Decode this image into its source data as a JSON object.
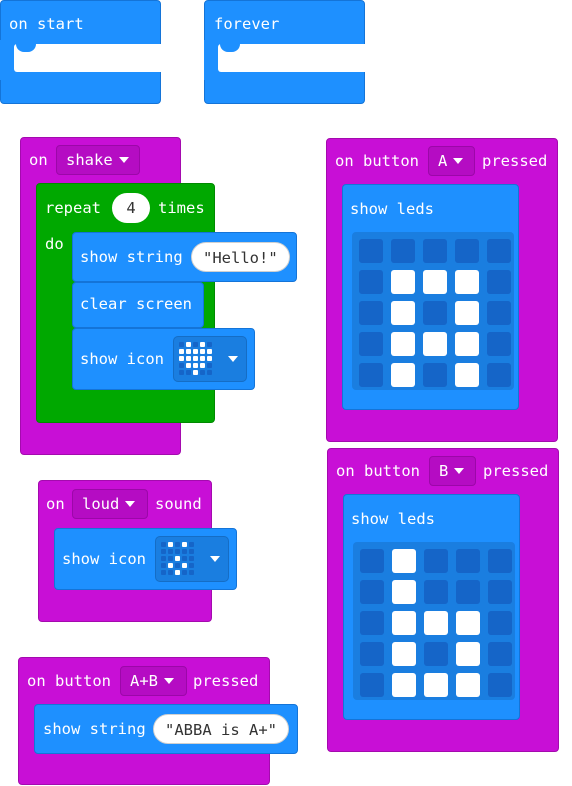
{
  "blocks": {
    "on_start": {
      "label": "on start"
    },
    "forever": {
      "label": "forever"
    },
    "on_shake": {
      "on_label": "on",
      "gesture": "shake",
      "repeat": {
        "label": "repeat",
        "count": "4",
        "times_label": "times",
        "do_label": "do"
      },
      "show_string": {
        "label": "show string",
        "value": "\"Hello!\""
      },
      "clear_screen": {
        "label": "clear screen"
      },
      "show_icon": {
        "label": "show icon",
        "icon": "heart-icon"
      }
    },
    "on_button_a": {
      "on_label": "on button",
      "button": "A",
      "pressed_label": "pressed",
      "show_leds": {
        "label": "show leds",
        "grid": [
          [
            0,
            0,
            0,
            0,
            0
          ],
          [
            0,
            1,
            1,
            1,
            0
          ],
          [
            0,
            1,
            0,
            1,
            0
          ],
          [
            0,
            1,
            1,
            1,
            0
          ],
          [
            0,
            1,
            0,
            1,
            0
          ]
        ]
      }
    },
    "on_button_b": {
      "on_label": "on button",
      "button": "B",
      "pressed_label": "pressed",
      "show_leds": {
        "label": "show leds",
        "grid": [
          [
            0,
            1,
            0,
            0,
            0
          ],
          [
            0,
            1,
            0,
            0,
            0
          ],
          [
            0,
            1,
            1,
            1,
            0
          ],
          [
            0,
            1,
            0,
            1,
            0
          ],
          [
            0,
            1,
            1,
            1,
            0
          ]
        ]
      }
    },
    "on_loud": {
      "on_label": "on",
      "level": "loud",
      "sound_label": "sound",
      "show_icon": {
        "label": "show icon",
        "icon": "surprised-icon"
      }
    },
    "on_button_ab": {
      "on_label": "on button",
      "button": "A+B",
      "pressed_label": "pressed",
      "show_string": {
        "label": "show string",
        "value": "\"ABBA is A+\""
      }
    }
  },
  "colors": {
    "basic_blue": "#1e90ff",
    "input_magenta": "#c80fd6",
    "loop_green": "#00a800",
    "led_on": "#ffffff",
    "led_off": "#1565c8"
  }
}
